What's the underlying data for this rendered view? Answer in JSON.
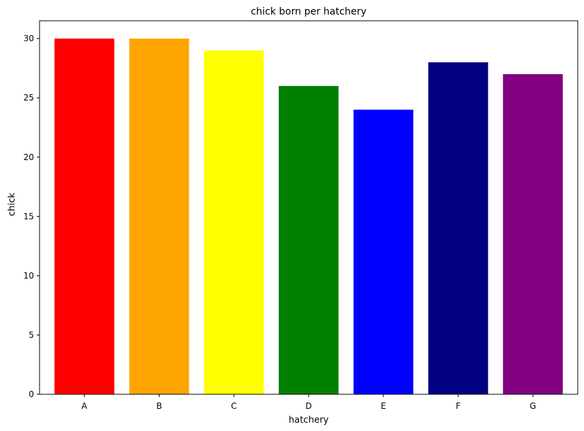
{
  "chart_data": {
    "type": "bar",
    "title": "chick born per hatchery",
    "xlabel": "hatchery",
    "ylabel": "chick",
    "categories": [
      "A",
      "B",
      "C",
      "D",
      "E",
      "F",
      "G"
    ],
    "values": [
      30,
      30,
      29,
      26,
      24,
      28,
      27
    ],
    "colors": [
      "#ff0000",
      "#ffa500",
      "#ffff00",
      "#008000",
      "#0000ff",
      "#000080",
      "#800080"
    ],
    "ylim": [
      0,
      31.5
    ],
    "yticks": [
      0,
      5,
      10,
      15,
      20,
      25,
      30
    ],
    "grid": false,
    "legend": "none"
  }
}
